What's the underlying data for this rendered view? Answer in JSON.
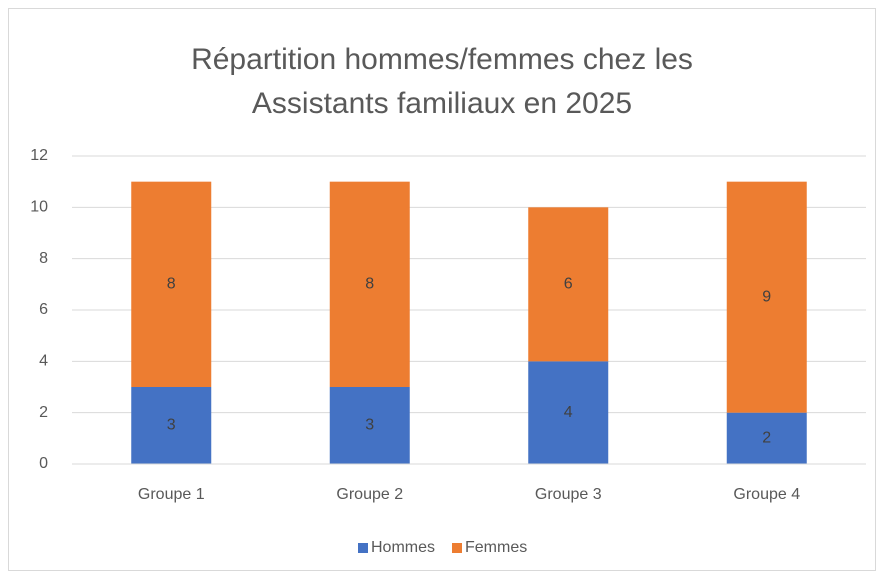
{
  "chart_data": {
    "type": "stacked_bar",
    "title": "Répartition hommes/femmes chez les Assistants familiaux en 2025",
    "categories": [
      "Groupe 1",
      "Groupe 2",
      "Groupe 3",
      "Groupe 4"
    ],
    "series": [
      {
        "name": "Hommes",
        "color": "#4472c4",
        "values": [
          3,
          3,
          4,
          2
        ]
      },
      {
        "name": "Femmes",
        "color": "#ed7d31",
        "values": [
          8,
          8,
          6,
          9
        ]
      }
    ],
    "ylim": [
      0,
      12
    ],
    "yticks": [
      0,
      2,
      4,
      6,
      8,
      10,
      12
    ],
    "grid": true,
    "legend": "bottom"
  }
}
